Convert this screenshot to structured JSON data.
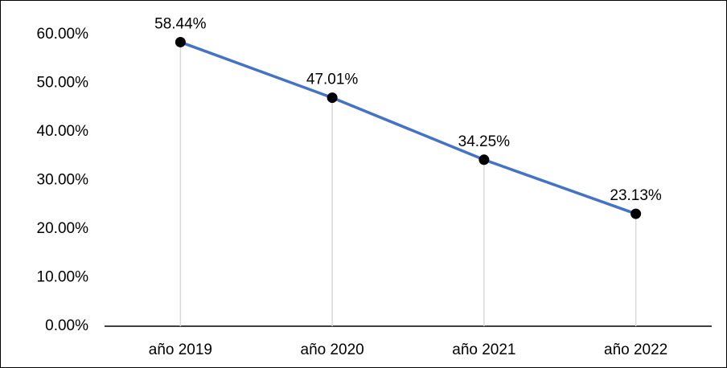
{
  "chart_data": {
    "type": "line",
    "categories": [
      "año 2019",
      "año 2020",
      "año 2021",
      "año 2022"
    ],
    "series": [
      {
        "color": "#4472c4",
        "values": [
          58.44,
          47.01,
          34.25,
          23.13
        ],
        "value_labels": [
          "58.44%",
          "47.01%",
          "34.25%",
          "23.13%"
        ]
      }
    ],
    "ylim": [
      0,
      60
    ],
    "yticks": [
      {
        "value": 0,
        "label": "0.00%"
      },
      {
        "value": 10,
        "label": "10.00%"
      },
      {
        "value": 20,
        "label": "20.00%"
      },
      {
        "value": 30,
        "label": "30.00%"
      },
      {
        "value": 40,
        "label": "40.00%"
      },
      {
        "value": 50,
        "label": "50.00%"
      },
      {
        "value": 60,
        "label": "60.00%"
      }
    ],
    "drop_lines": true
  }
}
